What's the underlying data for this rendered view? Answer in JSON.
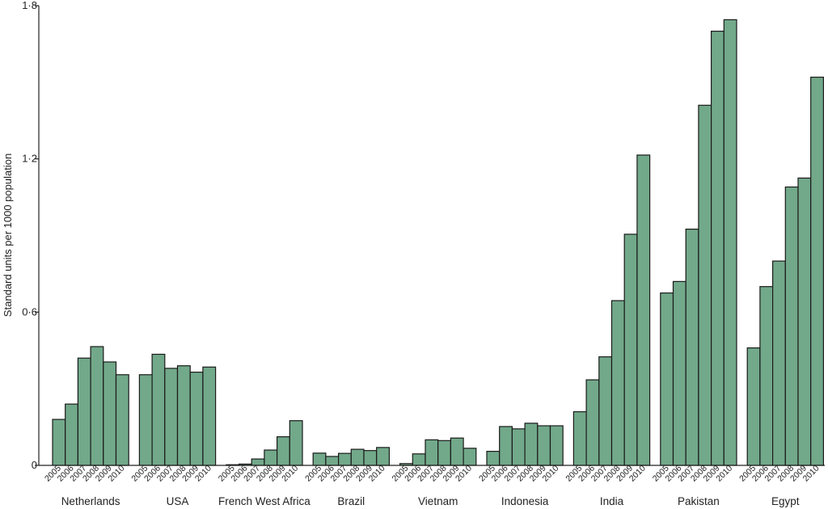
{
  "chart_data": {
    "type": "bar",
    "ylabel": "Standard units per 1000 population",
    "xlabel": "",
    "ylim": [
      0,
      1.8
    ],
    "yticks": [
      {
        "value": 0,
        "label": "0"
      },
      {
        "value": 0.6,
        "label": "0·6"
      },
      {
        "value": 1.2,
        "label": "1·2"
      },
      {
        "value": 1.8,
        "label": "1·8"
      }
    ],
    "years": [
      "2005",
      "2006",
      "2007",
      "2008",
      "2009",
      "2010"
    ],
    "bar_color": "#72a98a",
    "grid": false,
    "groups": [
      {
        "name": "Netherlands",
        "values": [
          0.18,
          0.24,
          0.42,
          0.465,
          0.405,
          0.355
        ]
      },
      {
        "name": "USA",
        "values": [
          0.355,
          0.435,
          0.38,
          0.39,
          0.365,
          0.385
        ]
      },
      {
        "name": "French West Africa",
        "values": [
          0.002,
          0.005,
          0.025,
          0.06,
          0.112,
          0.175
        ]
      },
      {
        "name": "Brazil",
        "values": [
          0.048,
          0.035,
          0.047,
          0.063,
          0.058,
          0.07
        ]
      },
      {
        "name": "Vietnam",
        "values": [
          0.007,
          0.045,
          0.1,
          0.097,
          0.107,
          0.067
        ]
      },
      {
        "name": "Indonesia",
        "values": [
          0.055,
          0.152,
          0.143,
          0.165,
          0.155,
          0.155
        ]
      },
      {
        "name": "India",
        "values": [
          0.21,
          0.335,
          0.425,
          0.645,
          0.905,
          1.215
        ]
      },
      {
        "name": "Pakistan",
        "values": [
          0.675,
          0.72,
          0.925,
          1.41,
          1.7,
          1.745
        ]
      },
      {
        "name": "Egypt",
        "values": [
          0.46,
          0.7,
          0.8,
          1.09,
          1.125,
          1.52
        ]
      }
    ]
  }
}
